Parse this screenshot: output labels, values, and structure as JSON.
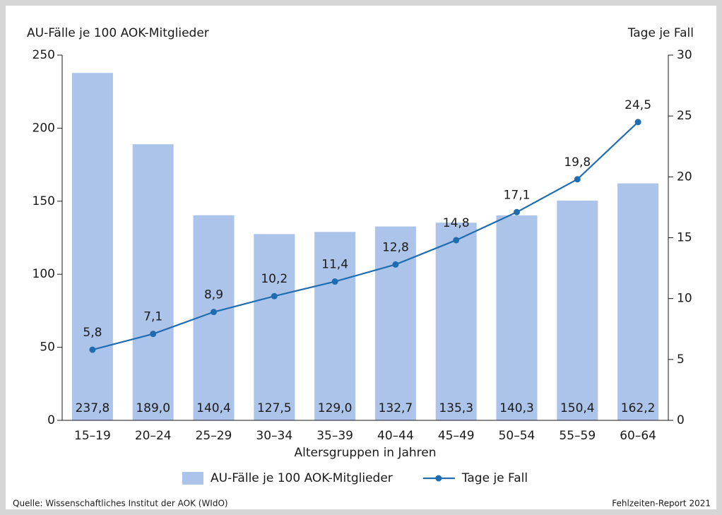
{
  "chart_data": {
    "type": "bar_line",
    "y_label": "AU-Fälle je 100 AOK-Mitglieder",
    "y2_label": "Tage je Fall",
    "x_label": "Altersgruppen in Jahren",
    "categories": [
      "15–19",
      "20–24",
      "25–29",
      "30–34",
      "35–39",
      "40–44",
      "45–49",
      "50–54",
      "55–59",
      "60–64"
    ],
    "series": [
      {
        "name": "AU-Fälle je 100 AOK-Mitglieder",
        "type": "bar",
        "color": "#adc4ea",
        "values": [
          237.8,
          189.0,
          140.4,
          127.5,
          129.0,
          132.7,
          135.3,
          140.3,
          150.4,
          162.2
        ],
        "value_labels": [
          "237,8",
          "189,0",
          "140,4",
          "127,5",
          "129,0",
          "132,7",
          "135,3",
          "140,3",
          "150,4",
          "162,2"
        ]
      },
      {
        "name": "Tage je Fall",
        "type": "line",
        "axis": "y2",
        "color": "#1f6db0",
        "values": [
          5.8,
          7.1,
          8.9,
          10.2,
          11.4,
          12.8,
          14.8,
          17.1,
          19.8,
          24.5
        ],
        "value_labels": [
          "5,8",
          "7,1",
          "8,9",
          "10,2",
          "11,4",
          "12,8",
          "14,8",
          "17,1",
          "19,8",
          "24,5"
        ]
      }
    ],
    "ylim": [
      0,
      250
    ],
    "yticks": [
      0,
      50,
      100,
      150,
      200,
      250
    ],
    "y2lim": [
      0,
      30
    ],
    "y2ticks": [
      0,
      5,
      10,
      15,
      20,
      25,
      30
    ],
    "legend": "bottom",
    "source": "Quelle: Wissenschaftliches Institut der AOK (WIdO)",
    "credit": "Fehlzeiten-Report 2021"
  }
}
